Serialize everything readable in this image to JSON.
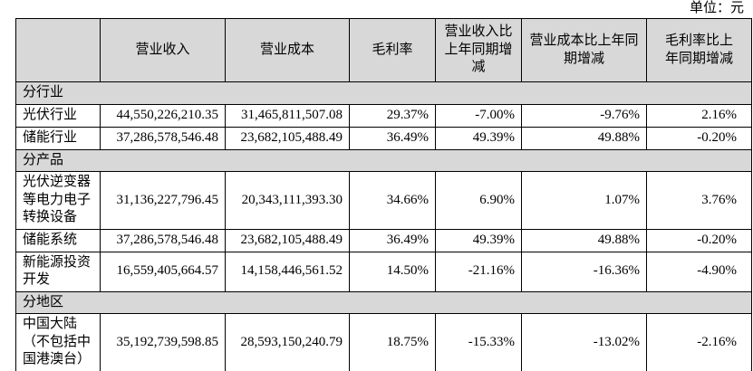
{
  "page": {
    "unit_label": "单位：元"
  },
  "table": {
    "columns": [
      "",
      "营业收入",
      "营业成本",
      "毛利率",
      "营业收入比\n上年同期增\n减",
      "营业成本比上年同\n期增减",
      "毛利率比上\n年同期增减"
    ],
    "rows": [
      {
        "type": "section",
        "label": "分行业"
      },
      {
        "type": "data",
        "label": "光伏行业",
        "values": [
          "44,550,226,210.35",
          "31,465,811,507.08",
          "29.37%",
          "-7.00%",
          "-9.76%",
          "2.16%"
        ]
      },
      {
        "type": "data",
        "label": "储能行业",
        "values": [
          "37,286,578,546.48",
          "23,682,105,488.49",
          "36.49%",
          "49.39%",
          "49.88%",
          "-0.20%"
        ]
      },
      {
        "type": "section",
        "label": "分产品"
      },
      {
        "type": "data",
        "label": "光伏逆变器\n等电力电子\n转换设备",
        "values": [
          "31,136,227,796.45",
          "20,343,111,393.30",
          "34.66%",
          "6.90%",
          "1.07%",
          "3.76%"
        ]
      },
      {
        "type": "data",
        "label": "储能系统",
        "values": [
          "37,286,578,546.48",
          "23,682,105,488.49",
          "36.49%",
          "49.39%",
          "49.88%",
          "-0.20%"
        ]
      },
      {
        "type": "data",
        "label": "新能源投资\n开发",
        "values": [
          "16,559,405,664.57",
          "14,158,446,561.52",
          "14.50%",
          "-21.16%",
          "-16.36%",
          "-4.90%"
        ]
      },
      {
        "type": "section",
        "label": "分地区"
      },
      {
        "type": "data",
        "label": "中国大陆\n（不包括中\n国港澳台）",
        "values": [
          "35,192,739,598.85",
          "28,593,150,240.79",
          "18.75%",
          "-15.33%",
          "-13.02%",
          "-2.16%"
        ]
      }
    ]
  }
}
